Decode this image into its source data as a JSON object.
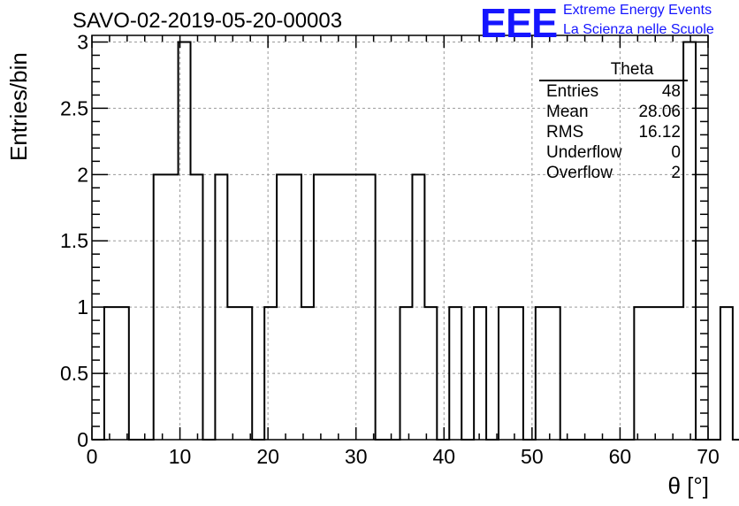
{
  "title": "SAVO-02-2019-05-20-00003",
  "logo": {
    "mark": "EEE",
    "line1": "Extreme Energy Events",
    "line2": "La Scienza nelle Scuole"
  },
  "stats_box": {
    "title": "Theta",
    "rows": [
      {
        "label": "Entries",
        "value": "48"
      },
      {
        "label": "Mean",
        "value": "28.06"
      },
      {
        "label": "RMS",
        "value": "16.12"
      },
      {
        "label": "Underflow",
        "value": "0"
      },
      {
        "label": "Overflow",
        "value": "2"
      }
    ]
  },
  "chart_data": {
    "type": "bar",
    "style": "step-histogram",
    "title": "SAVO-02-2019-05-20-00003",
    "xlabel": "θ [°]",
    "ylabel": "Entries/bin",
    "xlim": [
      0,
      70
    ],
    "ylim": [
      0,
      3.05
    ],
    "grid": true,
    "x_ticks": [
      "0",
      "10",
      "20",
      "30",
      "40",
      "50",
      "60",
      "70"
    ],
    "y_ticks": [
      "0",
      "0.5",
      "1",
      "1.5",
      "2",
      "2.5",
      "3"
    ],
    "bin_width": 1.4,
    "bin_start": 0,
    "values": [
      0,
      1,
      1,
      0,
      0,
      2,
      2,
      3,
      2,
      0,
      2,
      1,
      1,
      0,
      1,
      2,
      2,
      1,
      2,
      2,
      2,
      2,
      2,
      0,
      0,
      1,
      2,
      1,
      0,
      1,
      0,
      1,
      0,
      1,
      1,
      0,
      1,
      1,
      0,
      0,
      0,
      0,
      0,
      0,
      1,
      1,
      1,
      1,
      3,
      0,
      0,
      1,
      0,
      0,
      0,
      0,
      0,
      0,
      0,
      0
    ]
  }
}
